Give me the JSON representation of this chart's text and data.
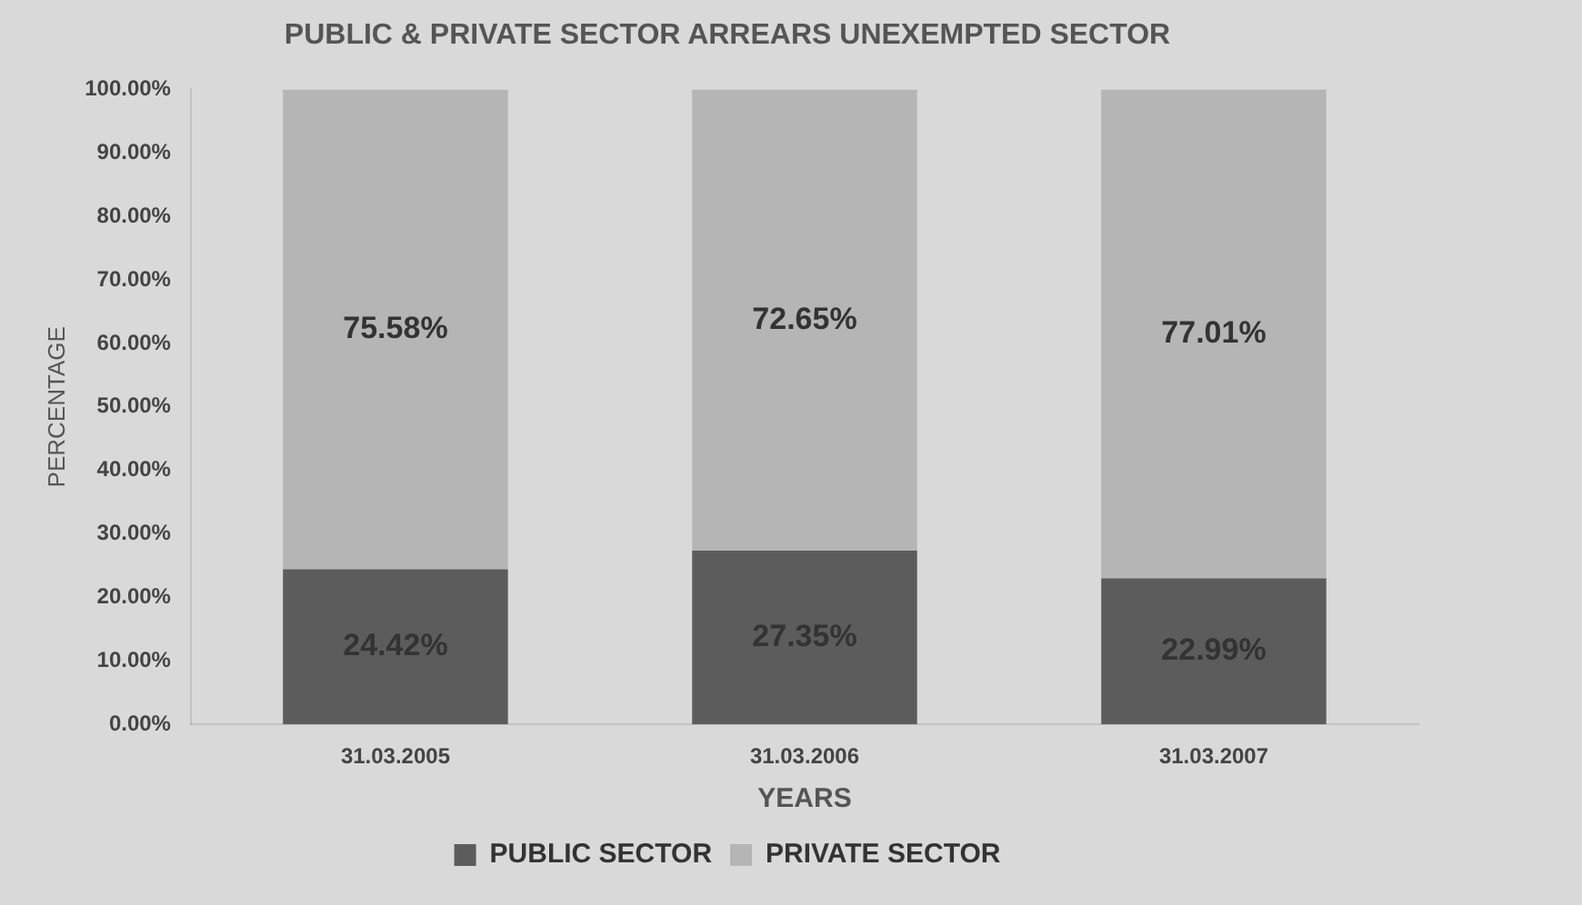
{
  "chart_data": {
    "type": "bar",
    "title": "PUBLIC & PRIVATE SECTOR ARREARS UNEXEMPTED SECTOR",
    "xlabel": "YEARS",
    "ylabel": "PERCENTAGE",
    "categories": [
      "31.03.2005",
      "31.03.2006",
      "31.03.2007"
    ],
    "stacked": true,
    "series": [
      {
        "name": "PUBLIC SECTOR",
        "color": "#5c5c5c",
        "values": [
          24.42,
          27.35,
          22.99
        ],
        "value_labels": [
          "24.42%",
          "27.35%",
          "22.99%"
        ]
      },
      {
        "name": "PRIVATE SECTOR",
        "color": "#b5b5b5",
        "values": [
          75.58,
          72.65,
          77.01
        ],
        "value_labels": [
          "75.58%",
          "72.65%",
          "77.01%"
        ]
      }
    ],
    "ylim": [
      0,
      100
    ],
    "yticks": [
      {
        "value": 0,
        "label": "0.00%"
      },
      {
        "value": 10,
        "label": "10.00%"
      },
      {
        "value": 20,
        "label": "20.00%"
      },
      {
        "value": 30,
        "label": "30.00%"
      },
      {
        "value": 40,
        "label": "40.00%"
      },
      {
        "value": 50,
        "label": "50.00%"
      },
      {
        "value": 60,
        "label": "60.00%"
      },
      {
        "value": 70,
        "label": "70.00%"
      },
      {
        "value": 80,
        "label": "80.00%"
      },
      {
        "value": 90,
        "label": "90.00%"
      },
      {
        "value": 100,
        "label": "100.00%"
      }
    ],
    "grid": false,
    "legend": "bottom"
  }
}
